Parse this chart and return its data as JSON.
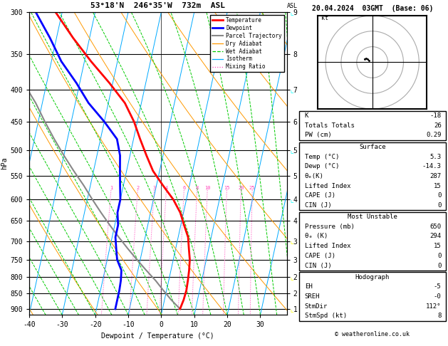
{
  "title_skewt": "53°18'N  246°35'W  732m  ASL",
  "title_right": "20.04.2024  03GMT  (Base: 06)",
  "xlabel": "Dewpoint / Temperature (°C)",
  "pressure_levels": [
    300,
    350,
    400,
    450,
    500,
    550,
    600,
    650,
    700,
    750,
    800,
    850,
    900
  ],
  "p_min": 300,
  "p_max": 920,
  "temp_xlim": [
    -40,
    38
  ],
  "skew_factor": 20.0,
  "isotherm_color": "#00aaff",
  "dry_adiabat_color": "#ff9900",
  "wet_adiabat_color": "#00cc00",
  "mixing_ratio_color": "#ff44bb",
  "temp_color": "#ff0000",
  "dewp_color": "#0000ff",
  "parcel_color": "#888888",
  "temperature_data": {
    "pressure": [
      300,
      330,
      360,
      390,
      420,
      450,
      480,
      510,
      540,
      570,
      600,
      630,
      660,
      690,
      720,
      750,
      780,
      810,
      840,
      870,
      900
    ],
    "temp": [
      -52,
      -45,
      -38,
      -31,
      -25,
      -21,
      -18,
      -15,
      -12,
      -8,
      -4,
      -1,
      1,
      3,
      4,
      5,
      5.5,
      5.8,
      6,
      5.8,
      5.3
    ]
  },
  "dewpoint_data": {
    "pressure": [
      300,
      330,
      360,
      390,
      420,
      450,
      480,
      510,
      540,
      570,
      600,
      630,
      660,
      690,
      720,
      750,
      780,
      810,
      840,
      870,
      900
    ],
    "dewp": [
      -58,
      -52,
      -47,
      -41,
      -36,
      -30,
      -25,
      -23,
      -22,
      -21,
      -20,
      -20,
      -19,
      -19,
      -18,
      -17,
      -15,
      -14.5,
      -14.3,
      -14.3,
      -14.3
    ]
  },
  "parcel_data": {
    "pressure": [
      900,
      870,
      840,
      810,
      780,
      750,
      720,
      690,
      660,
      630,
      600,
      570,
      540,
      510,
      480,
      450,
      420,
      390,
      360,
      330,
      300
    ],
    "temp": [
      5.3,
      2,
      -1,
      -4,
      -7.5,
      -11,
      -14.5,
      -18,
      -21.5,
      -25,
      -28.5,
      -32,
      -36,
      -40,
      -44,
      -48,
      -52,
      -57,
      -62,
      -67,
      -72
    ]
  },
  "mixing_ratio_values": [
    1,
    2,
    3,
    4,
    6,
    8,
    10,
    15,
    20,
    25
  ],
  "km_ticks": {
    "pressures": [
      300,
      350,
      400,
      450,
      500,
      550,
      600,
      650,
      700,
      750,
      800,
      850,
      900
    ],
    "km_values": [
      9,
      8,
      7,
      6,
      5,
      5,
      4,
      4,
      3,
      3,
      2,
      2,
      1
    ]
  },
  "stats_K": "-18",
  "stats_TT": "26",
  "stats_PW": "0.29",
  "stats_surf_temp": "5.3",
  "stats_surf_dewp": "-14.3",
  "stats_surf_theta": "287",
  "stats_surf_li": "15",
  "stats_surf_cape": "0",
  "stats_surf_cin": "0",
  "stats_mu_pres": "650",
  "stats_mu_theta": "294",
  "stats_mu_li": "15",
  "stats_mu_cape": "0",
  "stats_mu_cin": "0",
  "stats_eh": "-5",
  "stats_sreh": "-0",
  "stats_stmdir": "112°",
  "stats_stmspd": "8",
  "cyan_barb_pressures": [
    300,
    400,
    500,
    600
  ],
  "yellow_barb_pressures": [
    700,
    800,
    900
  ],
  "copyright": "© weatheronline.co.uk"
}
